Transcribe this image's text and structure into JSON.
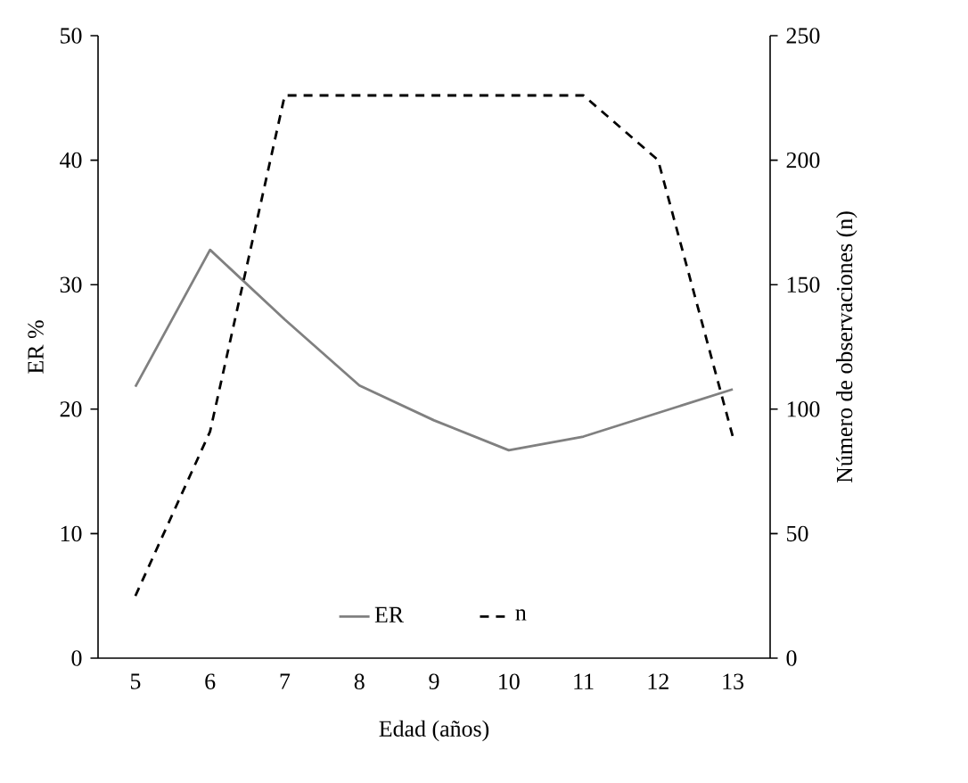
{
  "chart_data": {
    "type": "line",
    "xlabel": "Edad (años)",
    "ylabel": "ER %",
    "y2label": "Número de observaciones (n)",
    "categories": [
      "5",
      "6",
      "7",
      "8",
      "9",
      "10",
      "11",
      "12",
      "13"
    ],
    "series": [
      {
        "name": "ER",
        "color": "#808080",
        "line_style": "solid",
        "values": [
          21.8,
          32.8,
          27.2,
          21.9,
          19.1,
          16.7,
          17.8,
          19.7,
          21.6
        ]
      },
      {
        "name": "n",
        "color": "#000000",
        "line_style": "dashed",
        "axis": "y2",
        "values": [
          25,
          91,
          226,
          226,
          226,
          226,
          226,
          200,
          89
        ]
      }
    ],
    "ylim": [
      0,
      50
    ],
    "yticks": [
      0,
      10,
      20,
      30,
      40,
      50
    ],
    "y2lim": [
      0,
      250
    ],
    "y2ticks": [
      0,
      50,
      100,
      150,
      200,
      250
    ],
    "grid": false,
    "legend": "bottom",
    "marker": "none"
  }
}
